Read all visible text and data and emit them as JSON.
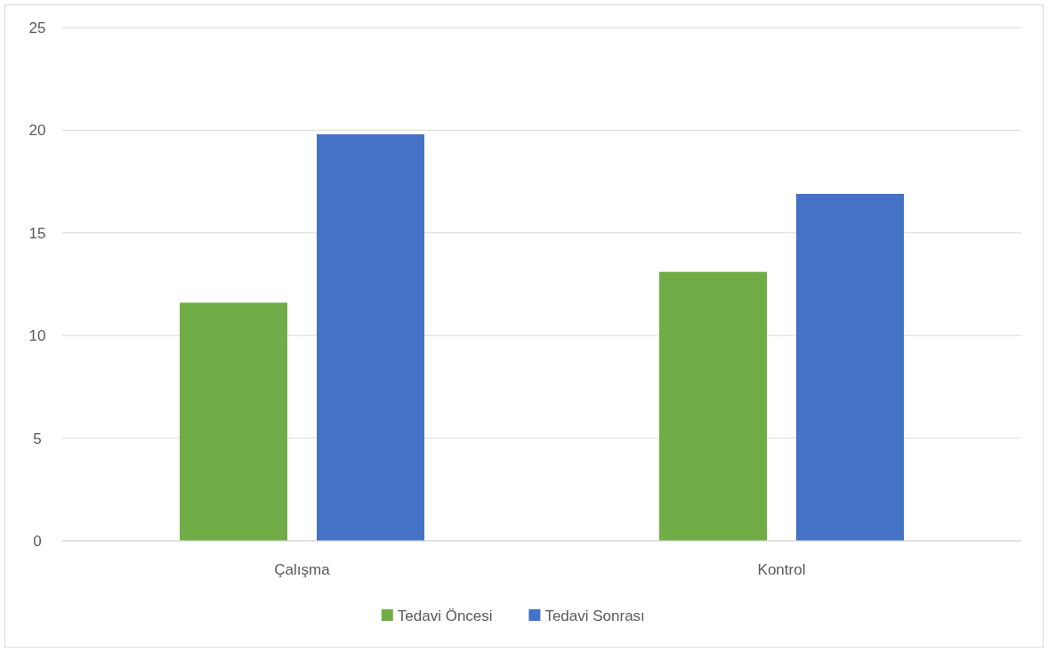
{
  "chart_data": {
    "type": "bar",
    "categories": [
      "Çalışma",
      "Kontrol"
    ],
    "series": [
      {
        "name": "Tedavi Öncesi",
        "color": "#70ad47",
        "values": [
          11.6,
          13.1
        ]
      },
      {
        "name": "Tedavi Sonrası",
        "color": "#4472c4",
        "values": [
          19.8,
          16.9
        ]
      }
    ],
    "ylim": [
      0,
      25
    ],
    "yticks": [
      0,
      5,
      10,
      15,
      20,
      25
    ],
    "grid": "y",
    "legend": "bottom"
  }
}
